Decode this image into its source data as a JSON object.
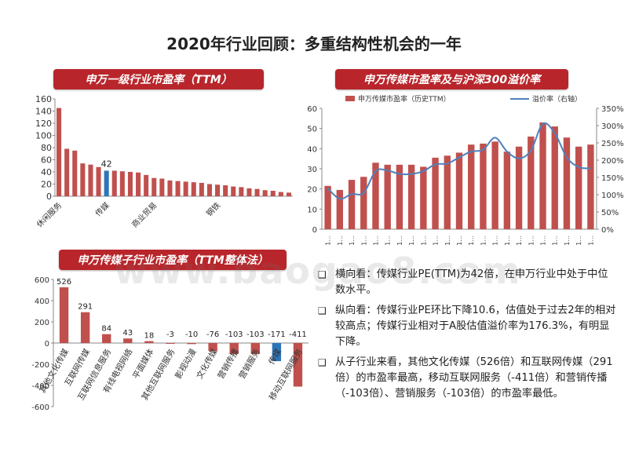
{
  "page": {
    "title": "2020年行业回顾：多重结构性机会的一年",
    "watermark": "www.baogao8.com"
  },
  "chart_data": [
    {
      "type": "bar",
      "title": "申万一级行业市盈率（TTM）",
      "categories": [
        "休闲服务",
        "",
        "",
        "",
        "",
        "",
        "传媒",
        "",
        "",
        "",
        "",
        "",
        "",
        "",
        "",
        "",
        "",
        "",
        "",
        "",
        "",
        "",
        "",
        "",
        "",
        "",
        "",
        "",
        "",
        ""
      ],
      "tick_labels": [
        "休闲服务",
        "传媒",
        "商业贸易",
        "钢铁"
      ],
      "values": [
        145,
        78,
        75,
        54,
        52,
        48,
        42,
        42,
        41,
        40,
        39,
        35,
        30,
        29,
        26,
        25,
        24,
        23,
        22,
        20,
        19,
        18,
        16,
        15,
        13,
        12,
        10,
        9,
        7,
        6
      ],
      "highlight_index": 6,
      "data_labels": [
        {
          "index": 6,
          "text": "42"
        }
      ],
      "ylim": [
        0,
        160
      ],
      "yticks": [
        0,
        20,
        40,
        60,
        80,
        100,
        120,
        140,
        160
      ],
      "colors": {
        "bar": "#c0504d",
        "highlight": "#2e75b6"
      }
    },
    {
      "type": "bar+line",
      "title": "申万传媒市盈率及与沪深300溢价率",
      "legend": {
        "bar": "申万传媒市盈率（历史TTM）",
        "line": "溢价率（右轴）",
        "placement": "top"
      },
      "x_tick_label": "1...",
      "bar_values": [
        21.5,
        19.5,
        24.5,
        26,
        33,
        32,
        32,
        32,
        31,
        35.5,
        36.5,
        38,
        42,
        42.5,
        43.5,
        38.5,
        41,
        46,
        53,
        51,
        45.5,
        41,
        42
      ],
      "line_values": [
        118,
        88,
        102,
        105,
        168,
        170,
        160,
        160,
        168,
        188,
        190,
        208,
        225,
        230,
        265,
        225,
        205,
        228,
        305,
        278,
        208,
        180,
        176
      ],
      "ylim_left": [
        0,
        60
      ],
      "yticks_left": [
        0,
        10,
        20,
        30,
        40,
        50,
        60
      ],
      "ylim_right": [
        0,
        350
      ],
      "yticks_right": [
        "0%",
        "50%",
        "100%",
        "150%",
        "200%",
        "250%",
        "300%",
        "350%"
      ],
      "colors": {
        "bar": "#c0504d",
        "line": "#4f81bd"
      }
    },
    {
      "type": "bar",
      "title": "申万传媒子行业市盈率（TTM整体法）",
      "categories": [
        "其他文化传媒",
        "互联网传媒",
        "互联网信息服务",
        "有线电视网络",
        "平面媒体",
        "其他互联网服务",
        "影视动漫",
        "文化传媒",
        "营销传播",
        "营销服务",
        "传媒",
        "移动互联网服务"
      ],
      "values": [
        526,
        291,
        84,
        43,
        18,
        -3,
        -10,
        -76,
        -103,
        -103,
        -171,
        -411
      ],
      "data_labels": [
        "526",
        "291",
        "84",
        "43",
        "18",
        "-3",
        "-10",
        "-76",
        "-103",
        "-103",
        "-171",
        "-411"
      ],
      "highlight_index": 10,
      "ylim": [
        -600,
        600
      ],
      "yticks": [
        -600,
        -400,
        -200,
        0,
        200,
        400,
        600
      ],
      "colors": {
        "bar": "#c0504d",
        "highlight": "#2e75b6"
      }
    }
  ],
  "bullets": [
    {
      "marker": "❑",
      "text": "横向看：传媒行业PE(TTM)为42倍，在申万行业中处于中位数水平。"
    },
    {
      "marker": "❑",
      "text": "纵向看：传媒行业PE环比下降10.6，估值处于过去2年的相对较高点；传媒行业相对于A股估值溢价率为176.3%，有明显下降。"
    },
    {
      "marker": "❑",
      "text": "从子行业来看，其他文化传媒（526倍）和互联网传媒（291倍）的市盈率最高，移动互联网服务（-411倍）和营销传播（-103倍）、营销服务（-103倍）的市盈率最低。"
    }
  ]
}
